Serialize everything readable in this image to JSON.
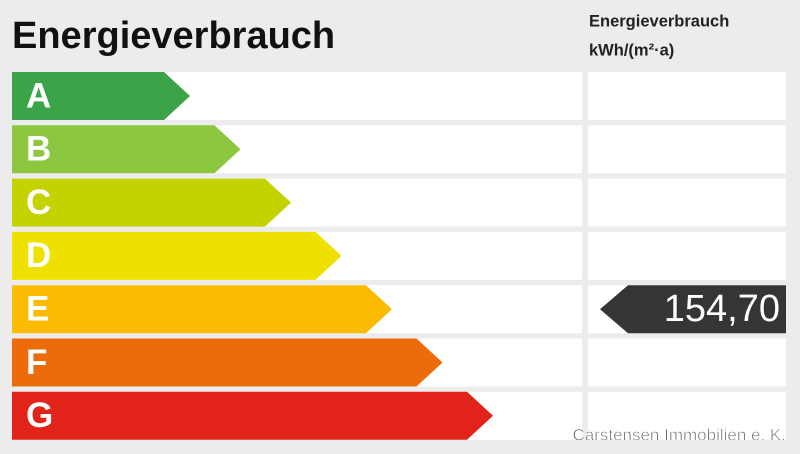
{
  "title": "Energieverbrauch",
  "side_header": {
    "line1": "Energieverbrauch",
    "line2": "kWh/(m²·a)"
  },
  "classes": [
    {
      "label": "A",
      "color": "#3ba449"
    },
    {
      "label": "B",
      "color": "#8dc63f"
    },
    {
      "label": "C",
      "color": "#c4d300"
    },
    {
      "label": "D",
      "color": "#eee100"
    },
    {
      "label": "E",
      "color": "#fbbb00"
    },
    {
      "label": "F",
      "color": "#ec6b0a"
    },
    {
      "label": "G",
      "color": "#e2231a"
    }
  ],
  "result": {
    "value_label": "154,70",
    "class_index": 4,
    "color": "#353535"
  },
  "watermark": "Carstensen Immobilien e. K."
}
